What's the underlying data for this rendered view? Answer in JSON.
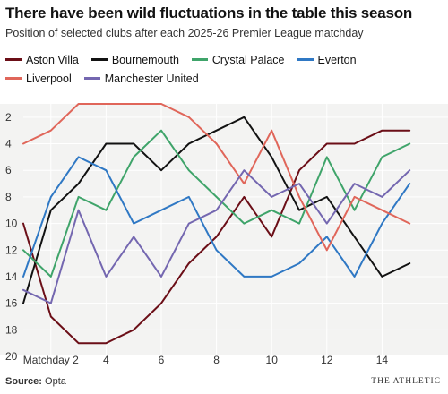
{
  "chart_data": {
    "type": "line",
    "title": "There have been wild fluctuations in the table this season",
    "subtitle": "Position of selected clubs after each 2025-26 Premier League matchday",
    "x": [
      1,
      2,
      3,
      4,
      5,
      6,
      7,
      8,
      9,
      10,
      11,
      12,
      13,
      14,
      15
    ],
    "xticks": [
      {
        "value": 2,
        "label": "Matchday 2"
      },
      {
        "value": 4,
        "label": "4"
      },
      {
        "value": 6,
        "label": "6"
      },
      {
        "value": 8,
        "label": "8"
      },
      {
        "value": 10,
        "label": "10"
      },
      {
        "value": 12,
        "label": "12"
      },
      {
        "value": 14,
        "label": "14"
      }
    ],
    "yticks": [
      2,
      4,
      6,
      8,
      10,
      12,
      14,
      16,
      18,
      20
    ],
    "xlim": [
      1,
      16
    ],
    "ylim": [
      1,
      20
    ],
    "y_inverted": true,
    "grid": true,
    "legend_position": "top-left",
    "series": [
      {
        "name": "Aston Villa",
        "color": "#6b0e17",
        "values": [
          10,
          17,
          19,
          19,
          18,
          16,
          13,
          11,
          8,
          11,
          6,
          4,
          4,
          3,
          3
        ]
      },
      {
        "name": "Bournemouth",
        "color": "#121212",
        "values": [
          16,
          9,
          7,
          4,
          4,
          6,
          4,
          3,
          2,
          5,
          9,
          8,
          11,
          14,
          13
        ]
      },
      {
        "name": "Crystal Palace",
        "color": "#3fa46a",
        "values": [
          12,
          14,
          8,
          9,
          5,
          3,
          6,
          8,
          10,
          9,
          10,
          5,
          9,
          5,
          4
        ]
      },
      {
        "name": "Everton",
        "color": "#2f78c4",
        "values": [
          14,
          8,
          5,
          6,
          10,
          9,
          8,
          12,
          14,
          14,
          13,
          11,
          14,
          10,
          7
        ]
      },
      {
        "name": "Liverpool",
        "color": "#e0665a",
        "values": [
          4,
          3,
          1,
          1,
          1,
          1,
          2,
          4,
          7,
          3,
          8,
          12,
          8,
          9,
          10
        ]
      },
      {
        "name": "Manchester United",
        "color": "#7467b0",
        "values": [
          15,
          16,
          9,
          14,
          11,
          14,
          10,
          9,
          6,
          8,
          7,
          10,
          7,
          8,
          6
        ]
      }
    ],
    "source_label": "Source:",
    "source_text": " Opta",
    "brand": "THE ATHLETIC"
  }
}
